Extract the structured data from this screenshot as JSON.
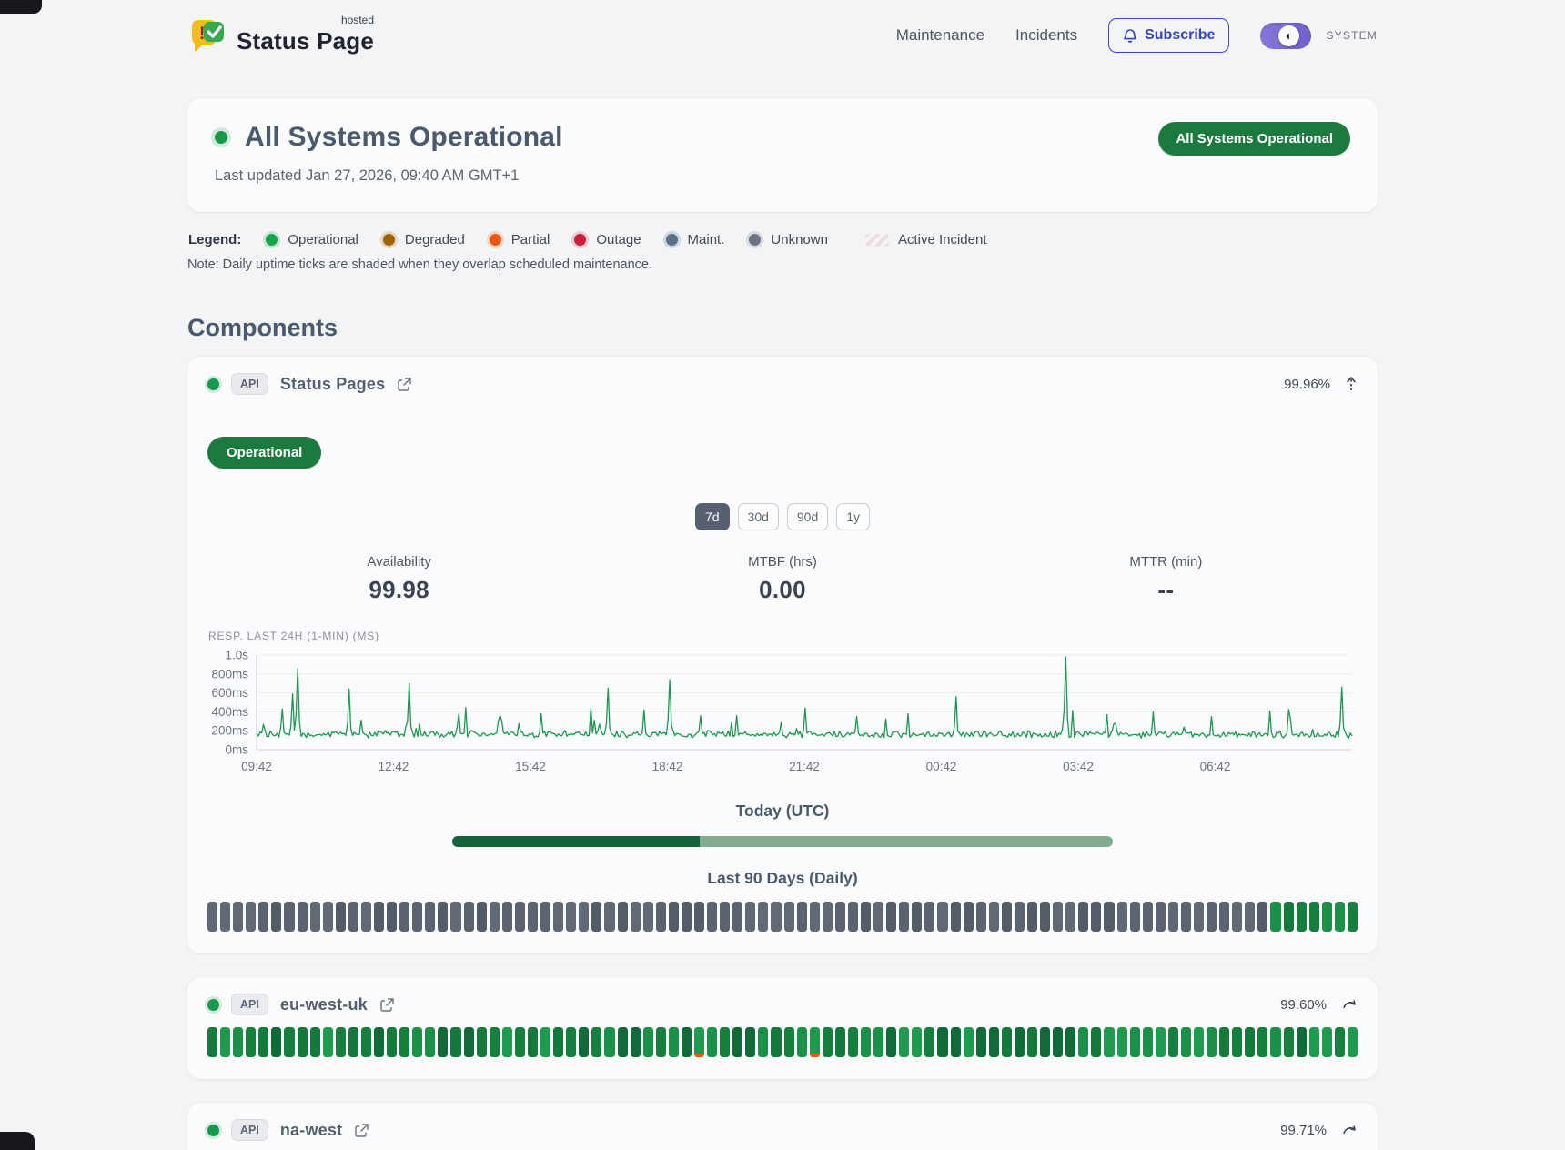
{
  "header": {
    "brand": "Status Page",
    "brand_sup": "hosted",
    "nav": [
      {
        "label": "Maintenance"
      },
      {
        "label": "Incidents"
      }
    ],
    "subscribe_label": "Subscribe",
    "theme_label": "SYSTEM"
  },
  "status": {
    "title": "All Systems Operational",
    "last_updated": "Last updated Jan 27, 2026, 09:40 AM GMT+1",
    "badge": "All Systems Operational"
  },
  "legend": {
    "label": "Legend:",
    "items": [
      {
        "label": "Operational",
        "color": "#16a34a",
        "ring": "rgba(22,163,74,0.2)"
      },
      {
        "label": "Degraded",
        "color": "#a16207",
        "ring": "rgba(161,98,7,0.2)"
      },
      {
        "label": "Partial",
        "color": "#e8590c",
        "ring": "rgba(232,89,12,0.2)"
      },
      {
        "label": "Outage",
        "color": "#c81e3a",
        "ring": "rgba(200,30,58,0.2)"
      },
      {
        "label": "Maint.",
        "color": "#5b7083",
        "ring": "rgba(96,140,190,0.28)"
      },
      {
        "label": "Unknown",
        "color": "#6b7280",
        "ring": "rgba(107,114,128,0.2)"
      }
    ],
    "active_incident_label": "Active Incident",
    "note": "Note: Daily uptime ticks are shaded when they overlap scheduled maintenance."
  },
  "components_heading": "Components",
  "components": [
    {
      "status": "operational",
      "type_badge": "API",
      "name": "Status Pages",
      "uptime": "99.96%",
      "status_label": "Operational",
      "ranges": [
        "7d",
        "30d",
        "90d",
        "1y"
      ],
      "active_range": "7d",
      "stats": [
        {
          "label": "Availability",
          "value": "99.98"
        },
        {
          "label": "MTBF (hrs)",
          "value": "0.00"
        },
        {
          "label": "MTTR (min)",
          "value": "--"
        }
      ],
      "chart_label": "RESP. LAST 24H (1-MIN) (MS)",
      "today_label": "Today (UTC)",
      "today_progress_pct": 37.5,
      "history_label": "Last 90 Days (Daily)"
    },
    {
      "status": "operational",
      "type_badge": "API",
      "name": "eu-west-uk",
      "uptime": "99.60%"
    },
    {
      "status": "operational",
      "type_badge": "API",
      "name": "na-west",
      "uptime": "99.71%"
    }
  ],
  "uptime_history": {
    "days": 90,
    "component_ticks": [
      {
        "name": "Status Pages",
        "pattern": [
          {
            "status": "unknown",
            "count": 83
          },
          {
            "status": "operational",
            "count": 7
          }
        ],
        "partial_bottom_indices": []
      },
      {
        "name": "eu-west-uk",
        "pattern": [
          {
            "status": "operational",
            "count": 90
          }
        ],
        "partial_bottom_indices": [
          38,
          47
        ]
      },
      {
        "name": "na-west",
        "pattern": [
          {
            "status": "operational",
            "count": 90
          }
        ],
        "partial_bottom_indices": [
          31
        ]
      }
    ],
    "tick_colors": {
      "operational": [
        "#1b9048",
        "#15803d",
        "#116b38",
        "#1f9b4f",
        "#147a3c"
      ],
      "unknown": [
        "#5b6370",
        "#545c68",
        "#616975"
      ],
      "partial_bottom": "#e8590c"
    }
  },
  "chart_data": {
    "type": "line",
    "title": "RESP. LAST 24H (1-MIN) (MS)",
    "x_ticks": [
      "09:42",
      "12:42",
      "15:42",
      "18:42",
      "21:42",
      "00:42",
      "03:42",
      "06:42"
    ],
    "y_ticks": [
      {
        "label": "0ms",
        "value": 0
      },
      {
        "label": "200ms",
        "value": 200
      },
      {
        "label": "400ms",
        "value": 400
      },
      {
        "label": "600ms",
        "value": 600
      },
      {
        "label": "800ms",
        "value": 800
      },
      {
        "label": "1.0s",
        "value": 1000
      }
    ],
    "ylim": [
      0,
      1000
    ],
    "x_range_hours": 24,
    "grid": true,
    "legend_position": "none",
    "line_color": "#1a9850",
    "baseline_ms": 163,
    "noise_ms": 42,
    "spikes": [
      {
        "f": 0.023,
        "ms": 430
      },
      {
        "f": 0.033,
        "ms": 590
      },
      {
        "f": 0.038,
        "ms": 860
      },
      {
        "f": 0.084,
        "ms": 640
      },
      {
        "f": 0.139,
        "ms": 700
      },
      {
        "f": 0.184,
        "ms": 380
      },
      {
        "f": 0.222,
        "ms": 360
      },
      {
        "f": 0.259,
        "ms": 380
      },
      {
        "f": 0.321,
        "ms": 650
      },
      {
        "f": 0.354,
        "ms": 420
      },
      {
        "f": 0.377,
        "ms": 740
      },
      {
        "f": 0.406,
        "ms": 360
      },
      {
        "f": 0.438,
        "ms": 360
      },
      {
        "f": 0.501,
        "ms": 440
      },
      {
        "f": 0.547,
        "ms": 350
      },
      {
        "f": 0.594,
        "ms": 380
      },
      {
        "f": 0.639,
        "ms": 560
      },
      {
        "f": 0.738,
        "ms": 980
      },
      {
        "f": 0.776,
        "ms": 370
      },
      {
        "f": 0.818,
        "ms": 400
      },
      {
        "f": 0.872,
        "ms": 350
      },
      {
        "f": 0.943,
        "ms": 330
      },
      {
        "f": 0.99,
        "ms": 660
      }
    ]
  },
  "theme": {
    "accent_green": "#1d7a3f",
    "indigo": "#3544b8",
    "toggle_purple": "#7568cf",
    "progress_dark": "#15613a",
    "progress_light": "#81ac90"
  }
}
